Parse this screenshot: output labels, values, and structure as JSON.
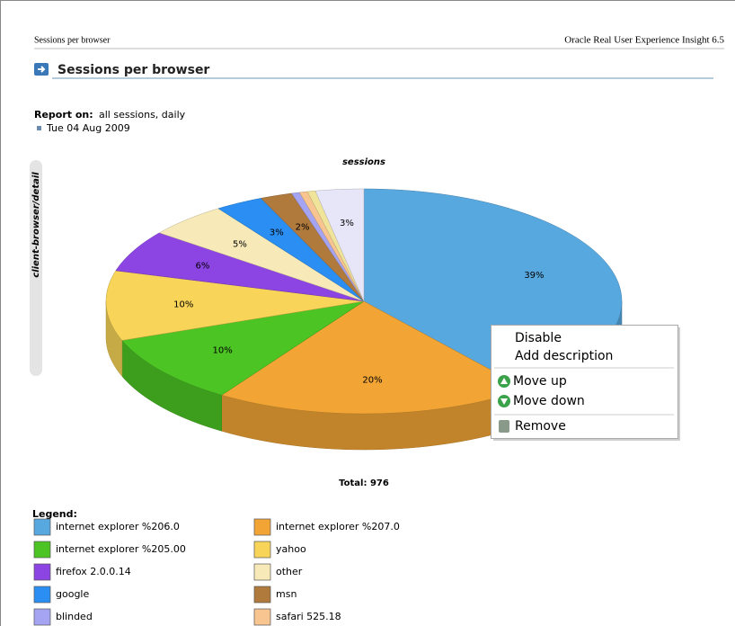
{
  "header": {
    "left": "Sessions per browser",
    "right": "Oracle Real User Experience Insight 6.5"
  },
  "page_title": "Sessions per browser",
  "report": {
    "label": "Report on:",
    "text": "all sessions, daily",
    "date": "Tue 04 Aug 2009"
  },
  "side_tab": "client-browser/detail",
  "chart_data": {
    "type": "pie",
    "title": "sessions",
    "total": "Total: 976",
    "categories": [
      "internet explorer %206.0",
      "internet explorer %207.0",
      "internet explorer %205.00",
      "yahoo",
      "firefox 2.0.0.14",
      "other",
      "google",
      "msn",
      "blinded",
      "safari 525.18",
      null,
      null
    ],
    "values": [
      39,
      20,
      10,
      10,
      6,
      5,
      3,
      2,
      0.5,
      0.5,
      0.5,
      3
    ],
    "value_labels": [
      "39%",
      "20%",
      "10%",
      "10%",
      "6%",
      "5%",
      "3%",
      "2%",
      null,
      null,
      null,
      "3%"
    ],
    "colors": [
      "#58a8e0",
      "#f2a535",
      "#4cc424",
      "#f8d458",
      "#8c44e2",
      "#f8eab8",
      "#2a8ef2",
      "#b07a3c",
      "#a4a4f2",
      "#f8c490",
      "#f0e49a",
      "#e6e6f8"
    ],
    "legend_title": "Legend:"
  },
  "context_menu": {
    "items": [
      "Disable",
      "Add description",
      "Move up",
      "Move down",
      "Remove"
    ]
  }
}
